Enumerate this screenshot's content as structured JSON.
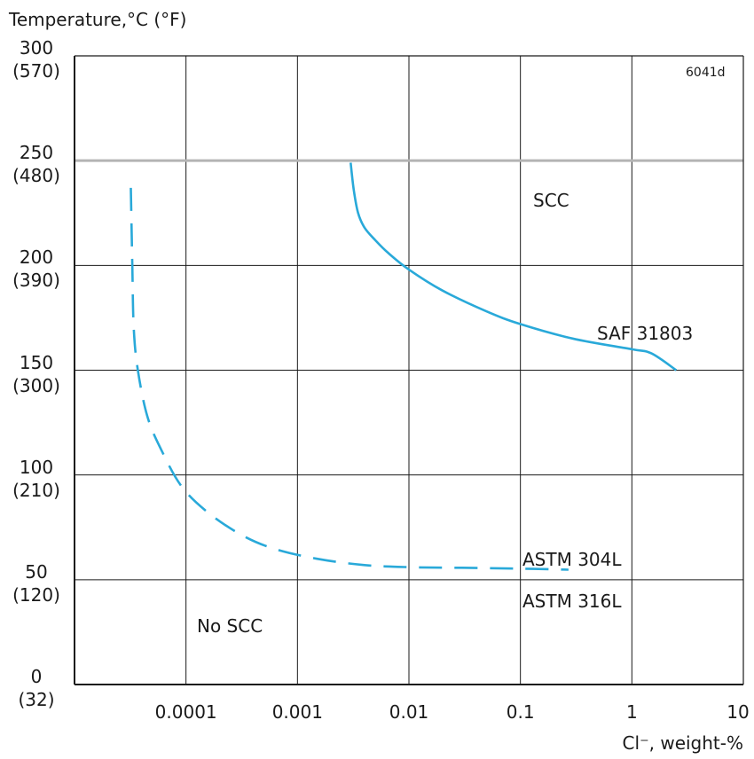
{
  "chart_data": {
    "type": "line",
    "title": "",
    "ylabel": "Temperature,°C (°F)",
    "xlabel": "Cl⁻, weight-%",
    "code": "6041d",
    "x_scale": "log",
    "xlim": [
      1e-05,
      10
    ],
    "ylim": [
      0,
      300
    ],
    "grid": true,
    "x_ticks": [
      {
        "value": 0.0001,
        "label": "0.0001"
      },
      {
        "value": 0.001,
        "label": "0.001"
      },
      {
        "value": 0.01,
        "label": "0.01"
      },
      {
        "value": 0.1,
        "label": "0.1"
      },
      {
        "value": 1,
        "label": "1"
      },
      {
        "value": 10,
        "label": "10"
      }
    ],
    "y_ticks": [
      {
        "value": 300,
        "c": "300",
        "f": "(570)"
      },
      {
        "value": 250,
        "c": "250",
        "f": "(480)"
      },
      {
        "value": 200,
        "c": "200",
        "f": "(390)"
      },
      {
        "value": 150,
        "c": "150",
        "f": "(300)"
      },
      {
        "value": 100,
        "c": "100",
        "f": "(210)"
      },
      {
        "value": 50,
        "c": "50",
        "f": "(120)"
      },
      {
        "value": 0,
        "c": "0",
        "f": "(32)"
      }
    ],
    "ref_line_y": 250,
    "series": [
      {
        "name": "SAF 31803",
        "style": "solid",
        "color": "#29a9d9",
        "x": [
          0.003,
          0.0032,
          0.0035,
          0.004,
          0.005,
          0.0065,
          0.01,
          0.02,
          0.05,
          0.1,
          0.3,
          1,
          1.5,
          2.5
        ],
        "y": [
          249,
          236,
          225,
          218,
          212,
          206,
          198,
          188,
          178,
          172,
          165,
          160,
          158,
          150
        ]
      },
      {
        "name": "ASTM 304L / ASTM 316L",
        "style": "dashed",
        "color": "#29a9d9",
        "x": [
          3.2e-05,
          3.3e-05,
          3.4e-05,
          3.7e-05,
          4.5e-05,
          6e-05,
          9e-05,
          0.00015,
          0.0003,
          0.0006,
          0.0015,
          0.004,
          0.01,
          0.03,
          0.1,
          0.27
        ],
        "y": [
          237,
          200,
          170,
          150,
          128,
          112,
          95,
          83,
          72,
          65,
          60,
          57,
          56,
          55.7,
          55.3,
          54.8
        ]
      }
    ],
    "annotations": {
      "scc": "SCC",
      "no_scc": "No SCC",
      "saf": "SAF 31803",
      "astm304": "ASTM 304L",
      "astm316": "ASTM 316L"
    }
  }
}
